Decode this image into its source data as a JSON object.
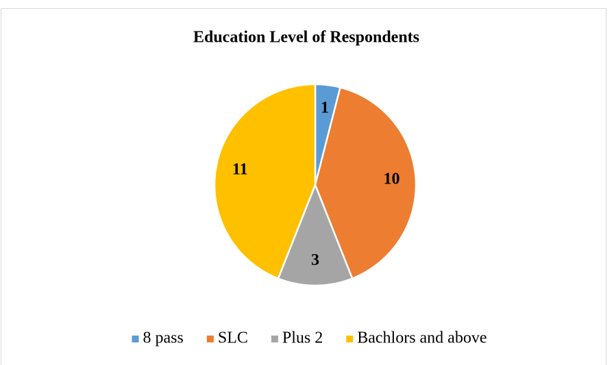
{
  "chart_data": {
    "type": "pie",
    "title": "Education Level of Respondents",
    "categories": [
      "8 pass",
      "SLC",
      "Plus 2",
      "Bachlors and above"
    ],
    "values": [
      1,
      10,
      3,
      11
    ],
    "colors": [
      "#5b9bd5",
      "#ed7d31",
      "#a5a5a5",
      "#ffc000"
    ],
    "legend": "bottom"
  }
}
